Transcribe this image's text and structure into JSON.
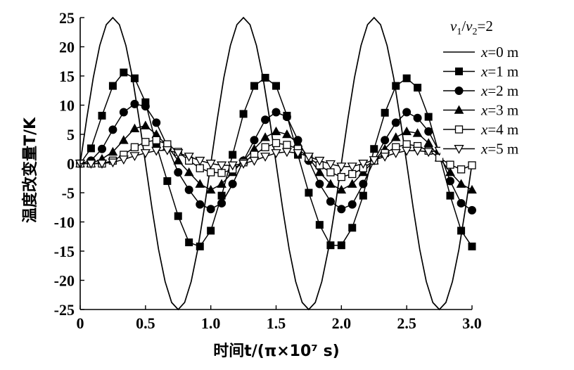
{
  "chart_data": {
    "type": "line",
    "title": "",
    "xlabel": "时间t/(π×10⁷ s)",
    "ylabel": "温度改变量T/K",
    "xlim": [
      0,
      3.0
    ],
    "ylim": [
      -25,
      25
    ],
    "x_ticks": [
      "0",
      "0.5",
      "1.0",
      "1.5",
      "2.0",
      "2.5",
      "3.0"
    ],
    "y_ticks": [
      "−25",
      "−20",
      "−15",
      "−10",
      "−5",
      "0",
      "5",
      "10",
      "15",
      "20",
      "25"
    ],
    "y_tick_display": [
      "-25",
      "-20",
      "-15",
      "-10",
      "-5",
      "0",
      "5",
      "10",
      "15",
      "20",
      "25"
    ],
    "grid": false,
    "legend_position": "top-right",
    "legend_header": "v1/v2=2",
    "series": [
      {
        "name": "x=0 m",
        "marker": "none",
        "x": [
          0,
          0.05,
          0.1,
          0.15,
          0.2,
          0.25,
          0.3,
          0.35,
          0.4,
          0.45,
          0.5,
          0.55,
          0.6,
          0.65,
          0.7,
          0.75,
          0.8,
          0.85,
          0.9,
          0.95,
          1.0,
          1.05,
          1.1,
          1.15,
          1.2,
          1.25,
          1.3,
          1.35,
          1.4,
          1.45,
          1.5,
          1.55,
          1.6,
          1.65,
          1.7,
          1.75,
          1.8,
          1.85,
          1.9,
          1.95,
          2.0,
          2.05,
          2.1,
          2.15,
          2.2,
          2.25,
          2.3,
          2.35,
          2.4,
          2.45,
          2.5,
          2.55,
          2.6,
          2.65,
          2.7,
          2.75,
          2.8,
          2.85,
          2.9,
          2.95,
          3.0
        ],
        "values": [
          0,
          7.7,
          14.7,
          20.2,
          23.8,
          25,
          23.8,
          20.2,
          14.7,
          7.7,
          0,
          -7.7,
          -14.7,
          -20.2,
          -23.8,
          -25,
          -23.8,
          -20.2,
          -14.7,
          -7.7,
          0,
          7.7,
          14.7,
          20.2,
          23.8,
          25,
          23.8,
          20.2,
          14.7,
          7.7,
          0,
          -7.7,
          -14.7,
          -20.2,
          -23.8,
          -25,
          -23.8,
          -20.2,
          -14.7,
          -7.7,
          0,
          7.7,
          14.7,
          20.2,
          23.8,
          25,
          23.8,
          20.2,
          14.7,
          7.7,
          0,
          -7.7,
          -14.7,
          -20.2,
          -23.8,
          -25,
          -23.8,
          -20.2,
          -14.7,
          -7.7,
          0
        ]
      },
      {
        "name": "x=1 m",
        "marker": "square-filled",
        "x": [
          0,
          0.083,
          0.167,
          0.25,
          0.333,
          0.417,
          0.5,
          0.583,
          0.667,
          0.75,
          0.833,
          0.917,
          1.0,
          1.083,
          1.167,
          1.25,
          1.333,
          1.417,
          1.5,
          1.583,
          1.667,
          1.75,
          1.833,
          1.917,
          2.0,
          2.083,
          2.167,
          2.25,
          2.333,
          2.417,
          2.5,
          2.583,
          2.667,
          2.75,
          2.833,
          2.917,
          3.0
        ],
        "values": [
          0,
          2.6,
          8.2,
          13.3,
          15.6,
          14.6,
          10.5,
          3.2,
          -3.0,
          -9.0,
          -13.5,
          -14.2,
          -11.5,
          -5.5,
          1.5,
          8.5,
          13.3,
          14.7,
          13.3,
          8.2,
          1.5,
          -5.0,
          -10.5,
          -14.0,
          -14.0,
          -11.0,
          -5.5,
          2.5,
          8.7,
          13.3,
          14.6,
          13.0,
          8.0,
          1.5,
          -5.5,
          -11.5,
          -14.2
        ]
      },
      {
        "name": "x=2 m",
        "marker": "circle-filled",
        "x": [
          0,
          0.083,
          0.167,
          0.25,
          0.333,
          0.417,
          0.5,
          0.583,
          0.667,
          0.75,
          0.833,
          0.917,
          1.0,
          1.083,
          1.167,
          1.25,
          1.333,
          1.417,
          1.5,
          1.583,
          1.667,
          1.75,
          1.833,
          1.917,
          2.0,
          2.083,
          2.167,
          2.25,
          2.333,
          2.417,
          2.5,
          2.583,
          2.667,
          2.75,
          2.833,
          2.917,
          3.0
        ],
        "values": [
          0,
          0.5,
          2.5,
          5.8,
          8.8,
          10.2,
          9.8,
          7.0,
          3.0,
          -1.5,
          -4.5,
          -7.0,
          -7.8,
          -6.8,
          -3.5,
          0.5,
          4.0,
          7.5,
          8.8,
          8.0,
          4.0,
          0.5,
          -3.5,
          -6.5,
          -7.8,
          -7.0,
          -3.5,
          0.5,
          4.0,
          7.0,
          8.8,
          7.8,
          5.5,
          2.0,
          -3.0,
          -6.8,
          -8.0
        ]
      },
      {
        "name": "x=3 m",
        "marker": "triangle-filled",
        "x": [
          0,
          0.083,
          0.167,
          0.25,
          0.333,
          0.417,
          0.5,
          0.583,
          0.667,
          0.75,
          0.833,
          0.917,
          1.0,
          1.083,
          1.167,
          1.25,
          1.333,
          1.417,
          1.5,
          1.583,
          1.667,
          1.75,
          1.833,
          1.917,
          2.0,
          2.083,
          2.167,
          2.25,
          2.333,
          2.417,
          2.5,
          2.583,
          2.667,
          2.75,
          2.833,
          2.917,
          3.0
        ],
        "values": [
          0,
          0,
          0.8,
          2.0,
          4.0,
          6.0,
          6.5,
          5.0,
          3.0,
          0.5,
          -1.5,
          -3.5,
          -4.5,
          -3.5,
          -1.5,
          0.5,
          2.5,
          4.5,
          5.5,
          5.0,
          3.5,
          1.0,
          -1.5,
          -3.5,
          -4.5,
          -3.5,
          -1.5,
          0.5,
          2.5,
          4.5,
          5.5,
          5.2,
          3.5,
          1.0,
          -1.5,
          -3.5,
          -4.5
        ]
      },
      {
        "name": "x=4 m",
        "marker": "square-open",
        "x": [
          0,
          0.083,
          0.167,
          0.25,
          0.333,
          0.417,
          0.5,
          0.583,
          0.667,
          0.75,
          0.833,
          0.917,
          1.0,
          1.083,
          1.167,
          1.25,
          1.333,
          1.417,
          1.5,
          1.583,
          1.667,
          1.75,
          1.833,
          1.917,
          2.0,
          2.083,
          2.167,
          2.25,
          2.333,
          2.417,
          2.5,
          2.583,
          2.667,
          2.75,
          2.833,
          2.917,
          3.0
        ],
        "values": [
          0,
          0,
          0,
          0.5,
          1.5,
          2.8,
          3.7,
          4.0,
          3.3,
          2.0,
          0.5,
          -0.8,
          -1.5,
          -1.6,
          -1.0,
          0.2,
          1.5,
          2.8,
          3.5,
          3.2,
          2.5,
          1.0,
          -0.3,
          -1.5,
          -2.3,
          -1.8,
          -0.8,
          0.5,
          1.8,
          2.8,
          3.3,
          3.0,
          2.2,
          1.0,
          -0.2,
          -1.0,
          -0.3
        ]
      },
      {
        "name": "x=5 m",
        "marker": "triangle-down-open",
        "x": [
          0,
          0.083,
          0.167,
          0.25,
          0.333,
          0.417,
          0.5,
          0.583,
          0.667,
          0.75,
          0.833,
          0.917,
          1.0,
          1.083,
          1.167,
          1.25,
          1.333,
          1.417,
          1.5,
          1.583,
          1.667,
          1.75,
          1.833,
          1.917,
          2.0,
          2.083,
          2.167,
          2.25,
          2.333,
          2.417,
          2.5,
          2.583,
          2.667,
          2.75,
          2.833,
          2.917,
          3.0
        ],
        "values": [
          0,
          0,
          0,
          0.2,
          0.7,
          1.3,
          1.8,
          2.2,
          2.3,
          1.8,
          1.2,
          0.5,
          0,
          -0.3,
          -0.3,
          0,
          0.5,
          1.2,
          1.8,
          2.0,
          1.8,
          1.2,
          0.5,
          -0.1,
          -0.5,
          -0.5,
          0,
          0.6,
          1.2,
          1.8,
          2.2,
          2.2,
          2.0,
          2.2,
          2.3,
          2.2,
          2.3
        ]
      }
    ]
  }
}
